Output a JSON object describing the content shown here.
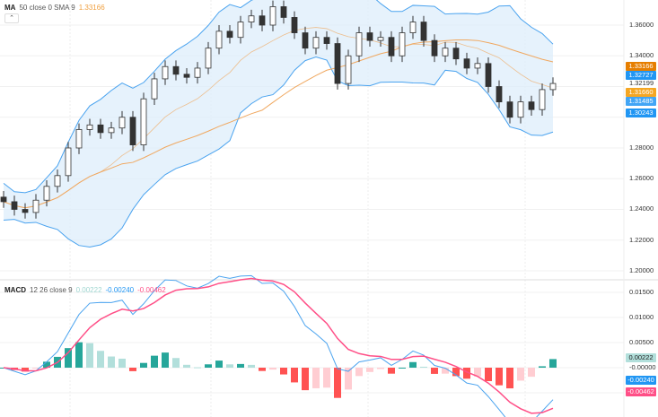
{
  "legend": {
    "ma_label": "MA",
    "ma_params": "50 close 0 SMA 9",
    "ma_value": "1.33166",
    "macd_label": "MACD",
    "macd_params": "12 26 close 9",
    "hist_value": "0.00222",
    "macd_value": "-0.00240",
    "signal_value": "-0.00462"
  },
  "colors": {
    "up": "#ffffff",
    "down": "#333333",
    "band_fill": "#dcecfb",
    "band_line": "#4aa3ef",
    "ma": "#f0a860",
    "macd": "#4aa3ef",
    "signal": "#ff4f87",
    "hist_up_strong": "#26a69a",
    "hist_up_weak": "#b2dfdb",
    "hist_down_strong": "#ff5252",
    "hist_down_weak": "#ffcdd2"
  },
  "chart_data": [
    {
      "type": "candlestick",
      "ylim": [
        1.19,
        1.375
      ],
      "price_ticks": [
        "1.36000",
        "1.34000",
        "1.28000",
        "1.26000",
        "1.24000",
        "1.22000",
        "1.20000"
      ],
      "closes": [
        1.245,
        1.24,
        1.238,
        1.246,
        1.255,
        1.262,
        1.28,
        1.292,
        1.295,
        1.29,
        1.293,
        1.3,
        1.282,
        1.312,
        1.325,
        1.333,
        1.328,
        1.326,
        1.332,
        1.345,
        1.356,
        1.352,
        1.362,
        1.366,
        1.36,
        1.372,
        1.365,
        1.355,
        1.345,
        1.352,
        1.348,
        1.322,
        1.34,
        1.355,
        1.35,
        1.352,
        1.34,
        1.355,
        1.362,
        1.35,
        1.34,
        1.345,
        1.338,
        1.332,
        1.335,
        1.32,
        1.31,
        1.3,
        1.31,
        1.305,
        1.318,
        1.322
      ],
      "price_tags": [
        {
          "text": "1.33166",
          "color": "#e67e00"
        },
        {
          "text": "1.32727",
          "color": "#2196f3"
        },
        {
          "text": "1.32199",
          "color": ""
        },
        {
          "text": "1.31660",
          "color": "#f5a623"
        },
        {
          "text": "1.31485",
          "color": "#42a5f5"
        },
        {
          "text": "1.30243",
          "color": "#2196f3"
        }
      ]
    },
    {
      "type": "macd",
      "ylim": [
        -0.0105,
        0.0175
      ],
      "ticks": [
        "0.01500",
        "0.01000",
        "0.00500",
        "-0.00000"
      ],
      "tags": [
        {
          "text": "0.00222",
          "color": "#b2dfdb"
        },
        {
          "text": "-0.00240",
          "color": "#2196f3"
        },
        {
          "text": "-0.00462",
          "color": "#ff4f87"
        }
      ]
    }
  ]
}
